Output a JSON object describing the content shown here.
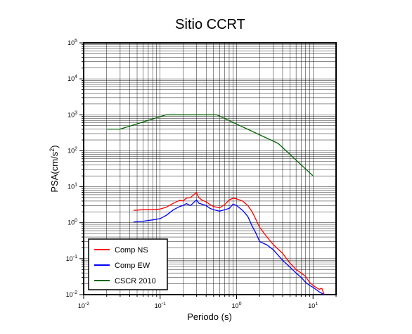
{
  "chart_data": {
    "type": "line",
    "title": "Sitio CCRT",
    "xlabel": "Periodo (s)",
    "ylabel": {
      "base": "PSA(cm/s",
      "exp": "2",
      "close": ")"
    },
    "x_scale": "log",
    "y_scale": "log",
    "xlim": [
      0.01,
      20
    ],
    "ylim": [
      0.01,
      100000
    ],
    "x_ticks": [
      {
        "value": 0.01,
        "base": "10",
        "exp": "-2"
      },
      {
        "value": 0.1,
        "base": "10",
        "exp": "-1"
      },
      {
        "value": 1,
        "base": "10",
        "exp": "0"
      },
      {
        "value": 10,
        "base": "10",
        "exp": "1"
      }
    ],
    "y_ticks": [
      {
        "value": 0.01,
        "base": "10",
        "exp": "-2"
      },
      {
        "value": 0.1,
        "base": "10",
        "exp": "-1"
      },
      {
        "value": 1,
        "base": "10",
        "exp": "0"
      },
      {
        "value": 10,
        "base": "10",
        "exp": "1"
      },
      {
        "value": 100,
        "base": "10",
        "exp": "2"
      },
      {
        "value": 1000,
        "base": "10",
        "exp": "3"
      },
      {
        "value": 10000,
        "base": "10",
        "exp": "4"
      },
      {
        "value": 100000,
        "base": "10",
        "exp": "5"
      }
    ],
    "grid": true,
    "legend_position": "bottom-left",
    "series": [
      {
        "name": "Comp NS",
        "color": "#ff0000",
        "points": [
          [
            0.045,
            2.2
          ],
          [
            0.06,
            2.3
          ],
          [
            0.08,
            2.3
          ],
          [
            0.1,
            2.4
          ],
          [
            0.12,
            2.7
          ],
          [
            0.15,
            3.5
          ],
          [
            0.18,
            4.2
          ],
          [
            0.2,
            4.0
          ],
          [
            0.22,
            4.8
          ],
          [
            0.25,
            5.0
          ],
          [
            0.28,
            6.2
          ],
          [
            0.3,
            6.8
          ],
          [
            0.32,
            5.0
          ],
          [
            0.35,
            4.3
          ],
          [
            0.4,
            3.8
          ],
          [
            0.45,
            3.2
          ],
          [
            0.5,
            2.8
          ],
          [
            0.6,
            2.6
          ],
          [
            0.7,
            3.2
          ],
          [
            0.8,
            4.3
          ],
          [
            0.9,
            4.8
          ],
          [
            1.0,
            4.6
          ],
          [
            1.2,
            4.0
          ],
          [
            1.4,
            3.0
          ],
          [
            1.6,
            2.0
          ],
          [
            1.8,
            1.2
          ],
          [
            2.0,
            0.75
          ],
          [
            2.5,
            0.4
          ],
          [
            3.0,
            0.25
          ],
          [
            4.0,
            0.14
          ],
          [
            5.0,
            0.075
          ],
          [
            6.0,
            0.05
          ],
          [
            7.0,
            0.04
          ],
          [
            8.0,
            0.032
          ],
          [
            9.0,
            0.022
          ],
          [
            10.0,
            0.018
          ],
          [
            12.0,
            0.014
          ],
          [
            13.0,
            0.015
          ],
          [
            14.0,
            0.01
          ]
        ]
      },
      {
        "name": "Comp EW",
        "color": "#0000ff",
        "points": [
          [
            0.045,
            1.05
          ],
          [
            0.06,
            1.1
          ],
          [
            0.08,
            1.2
          ],
          [
            0.1,
            1.3
          ],
          [
            0.12,
            1.6
          ],
          [
            0.15,
            2.3
          ],
          [
            0.18,
            2.8
          ],
          [
            0.2,
            3.0
          ],
          [
            0.22,
            3.4
          ],
          [
            0.25,
            3.0
          ],
          [
            0.28,
            3.8
          ],
          [
            0.3,
            4.3
          ],
          [
            0.32,
            3.5
          ],
          [
            0.35,
            3.3
          ],
          [
            0.4,
            3.0
          ],
          [
            0.45,
            2.5
          ],
          [
            0.5,
            2.3
          ],
          [
            0.6,
            2.1
          ],
          [
            0.7,
            2.3
          ],
          [
            0.8,
            2.5
          ],
          [
            0.9,
            3.3
          ],
          [
            1.0,
            3.0
          ],
          [
            1.2,
            2.2
          ],
          [
            1.4,
            1.5
          ],
          [
            1.6,
            0.8
          ],
          [
            1.8,
            0.5
          ],
          [
            2.0,
            0.3
          ],
          [
            2.5,
            0.24
          ],
          [
            3.0,
            0.18
          ],
          [
            4.0,
            0.09
          ],
          [
            5.0,
            0.058
          ],
          [
            6.0,
            0.04
          ],
          [
            7.0,
            0.03
          ],
          [
            8.0,
            0.022
          ],
          [
            9.0,
            0.018
          ],
          [
            10.0,
            0.016
          ],
          [
            12.0,
            0.012
          ],
          [
            14.0,
            0.01
          ]
        ]
      },
      {
        "name": "CSCR 2010",
        "color": "#006400",
        "points": [
          [
            0.02,
            400
          ],
          [
            0.03,
            400
          ],
          [
            0.12,
            1000
          ],
          [
            0.55,
            1000
          ],
          [
            3.5,
            160
          ],
          [
            10.0,
            20
          ]
        ]
      }
    ]
  }
}
